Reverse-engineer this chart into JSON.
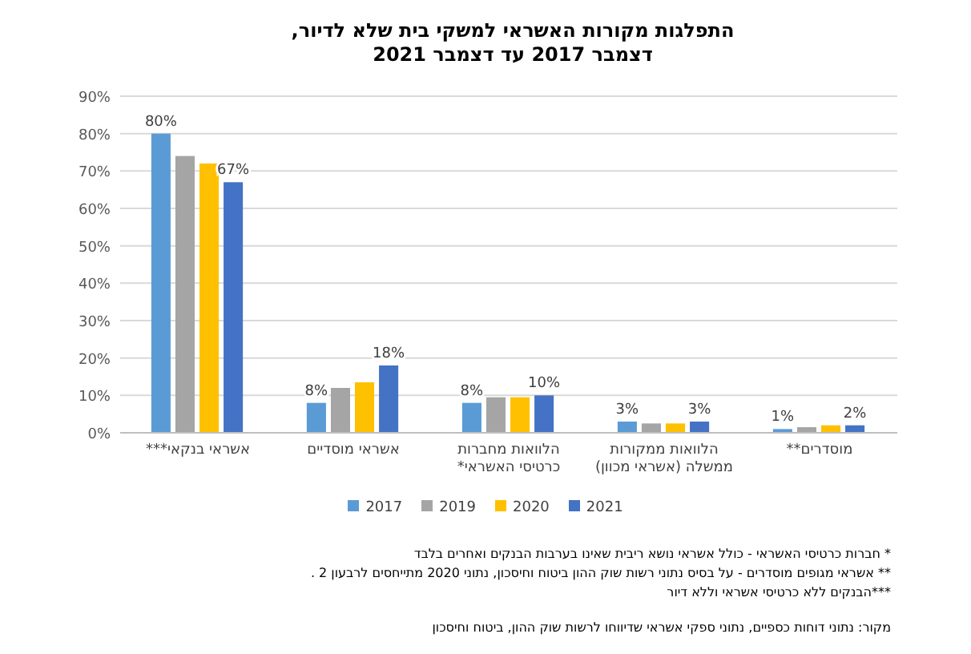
{
  "chart_data": {
    "type": "bar",
    "title": "התפלגות מקורות האשראי למשקי בית שלא לדיור, דצמבר 2017 עד דצמבר 2021",
    "categories": [
      "אשראי בנקאי***",
      "אשראי מוסדיים",
      "הלוואות מחברות כרטיסי האשראי*",
      "הלוואות ממקורות ממשלה (אשראי מכוון)",
      "מוסדרים**"
    ],
    "series": [
      {
        "name": "2017",
        "color": "#5b9bd5",
        "values": [
          80,
          8,
          8,
          3,
          1
        ],
        "value_labels": [
          "80%",
          "8%",
          "8%",
          "3%",
          "1%"
        ]
      },
      {
        "name": "2019",
        "color": "#a5a5a5",
        "values": [
          74,
          12,
          9.5,
          2.5,
          1.5
        ]
      },
      {
        "name": "2020",
        "color": "#ffc000",
        "values": [
          72,
          13.5,
          9.5,
          2.5,
          2
        ]
      },
      {
        "name": "2021",
        "color": "#4472c4",
        "values": [
          67,
          18,
          10,
          3,
          2
        ],
        "value_labels": [
          "67%",
          "18%",
          "10%",
          "3%",
          "2%"
        ]
      }
    ],
    "ylim": [
      0,
      90
    ],
    "yticks": [
      {
        "value": 0,
        "label": "0%"
      },
      {
        "value": 10,
        "label": "10%"
      },
      {
        "value": 20,
        "label": "20%"
      },
      {
        "value": 30,
        "label": "30%"
      },
      {
        "value": 40,
        "label": "40%"
      },
      {
        "value": 50,
        "label": "50%"
      },
      {
        "value": 60,
        "label": "60%"
      },
      {
        "value": 70,
        "label": "70%"
      },
      {
        "value": 80,
        "label": "80%"
      },
      {
        "value": 90,
        "label": "90%"
      }
    ],
    "grid": "y",
    "legend": "bottom",
    "annotations": [
      "* חברות כרטיסי האשראי - כולל אשראי נושא ריבית שאינו בערבות הבנקים ואחרים בלבד",
      "** אשראי מגופים מוסדרים - על בסיס נתוני רשות שוק ההון ביטוח וחיסכון, נתוני 2020 מתייחסים לרבעון 2 .",
      "***הבנקים ללא כרטיסי אשראי וללא דיור",
      "מקור: נתוני דוחות כספיים, נתוני ספקי אשראי שדיווחו לרשות שוק ההון, ביטוח וחיסכון"
    ]
  }
}
